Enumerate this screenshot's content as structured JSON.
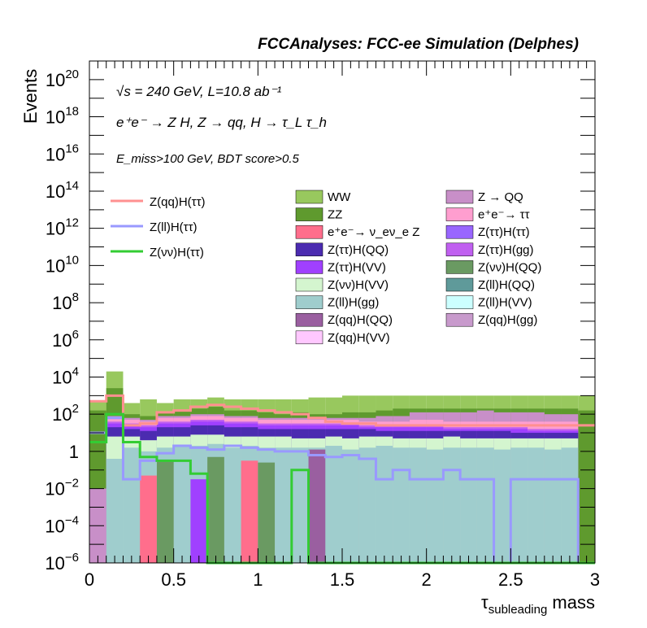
{
  "chart_data": {
    "type": "area",
    "title": "FCCAnalyses: FCC-ee Simulation (Delphes)",
    "ylabel": "Events",
    "xlabel_main": "τ",
    "xlabel_sub": "subleading",
    "xlabel_tail": " mass",
    "xlim": [
      0,
      3
    ],
    "ylim_log10": [
      -6,
      21
    ],
    "log_y": true,
    "x_ticks": [
      0,
      0.5,
      1,
      1.5,
      2,
      2.5,
      3
    ],
    "x_tick_labels": [
      "0",
      "0.5",
      "1",
      "1.5",
      "2",
      "2.5",
      "3"
    ],
    "y_ticks": [
      {
        "exp": -6,
        "base": "10",
        "sup": "−6"
      },
      {
        "exp": -4,
        "base": "10",
        "sup": "−4"
      },
      {
        "exp": -2,
        "base": "10",
        "sup": "−2"
      },
      {
        "exp": 0,
        "base": "1",
        "sup": ""
      },
      {
        "exp": 2,
        "base": "10",
        "sup": "2"
      },
      {
        "exp": 4,
        "base": "10",
        "sup": "4"
      },
      {
        "exp": 6,
        "base": "10",
        "sup": "6"
      },
      {
        "exp": 8,
        "base": "10",
        "sup": "8"
      },
      {
        "exp": 10,
        "base": "10",
        "sup": "10"
      },
      {
        "exp": 12,
        "base": "10",
        "sup": "12"
      },
      {
        "exp": 14,
        "base": "10",
        "sup": "14"
      },
      {
        "exp": 16,
        "base": "10",
        "sup": "16"
      },
      {
        "exp": 18,
        "base": "10",
        "sup": "18"
      },
      {
        "exp": 20,
        "base": "10",
        "sup": "20"
      }
    ],
    "bin_width": 0.1,
    "annotations": {
      "line1": "√s = 240 GeV, L=10.8 ab⁻¹",
      "line2": "e⁺e⁻ → Z H, Z → qq, H → τ_L τ_h",
      "line3": "E_miss>100 GeV, BDT score>0.5"
    },
    "stack_log10_layers": [
      {
        "name": "Z(ll)H(gg)",
        "color": "#9fcdcd",
        "tops": [
          -6,
          -0.4,
          0.2,
          0.0,
          0.2,
          0.3,
          0.3,
          0.4,
          0.2,
          0.3,
          0.2,
          0.2,
          0.2,
          0.2,
          0.3,
          0.1,
          0.2,
          0.3,
          0.2,
          0.2,
          0.1,
          0.2,
          0.2,
          0.2,
          0.1,
          0.2,
          0.2,
          0.1,
          0.2,
          -6
        ]
      },
      {
        "name": "Z(νν)H(VV)",
        "color": "#d4f5cf",
        "tops": [
          -6,
          0.8,
          0.8,
          0.6,
          0.8,
          0.8,
          0.9,
          0.9,
          0.8,
          0.8,
          0.8,
          0.8,
          0.7,
          0.7,
          0.8,
          0.7,
          0.8,
          0.8,
          0.7,
          0.7,
          0.7,
          0.8,
          0.7,
          0.7,
          0.7,
          0.7,
          0.7,
          0.7,
          0.7,
          -6
        ]
      },
      {
        "name": "Z(ττ)H(QQ)",
        "color": "#4b2bb0",
        "tops": [
          -6,
          1.3,
          1.2,
          1.1,
          1.3,
          1.3,
          1.4,
          1.4,
          1.3,
          1.3,
          1.2,
          1.2,
          1.2,
          1.2,
          1.2,
          1.2,
          1.2,
          1.1,
          1.1,
          1.1,
          1.1,
          1.1,
          1.1,
          1.1,
          1.1,
          1.0,
          1.0,
          1.0,
          1.0,
          -6
        ]
      },
      {
        "name": "Z(ττ)H(VV)",
        "color": "#a040ff",
        "tops": [
          -6,
          1.5,
          1.4,
          1.3,
          1.5,
          1.5,
          1.6,
          1.6,
          1.5,
          1.5,
          1.4,
          1.4,
          1.4,
          1.4,
          1.4,
          1.4,
          1.3,
          1.3,
          1.3,
          1.3,
          1.3,
          1.2,
          1.2,
          1.2,
          1.2,
          1.2,
          1.1,
          1.1,
          1.1,
          -6
        ]
      },
      {
        "name": "Z(ττ)H(gg)",
        "color": "#c060f0",
        "tops": [
          -6,
          1.6,
          1.5,
          1.4,
          1.6,
          1.6,
          1.7,
          1.7,
          1.6,
          1.6,
          1.5,
          1.5,
          1.5,
          1.5,
          1.5,
          1.5,
          1.4,
          1.4,
          1.4,
          1.4,
          1.4,
          1.3,
          1.3,
          1.3,
          1.3,
          1.3,
          1.2,
          1.2,
          1.2,
          -6
        ]
      },
      {
        "name": "e⁺e⁻→ ττ",
        "color": "#ff9ecf",
        "tops": [
          -6,
          1.8,
          1.7,
          1.6,
          1.8,
          1.8,
          1.9,
          1.9,
          1.8,
          1.8,
          1.7,
          1.7,
          1.7,
          1.7,
          1.7,
          1.7,
          1.6,
          1.6,
          1.6,
          1.7,
          1.7,
          1.6,
          1.6,
          1.6,
          1.6,
          1.6,
          1.6,
          1.6,
          1.6,
          -6
        ]
      },
      {
        "name": "Z → QQ",
        "color": "#c88fc8",
        "tops": [
          -6,
          1.9,
          1.8,
          1.7,
          1.9,
          1.9,
          2.0,
          2.0,
          1.9,
          1.9,
          1.8,
          1.8,
          1.8,
          1.8,
          1.8,
          1.8,
          1.8,
          1.9,
          1.9,
          2.1,
          2.1,
          2.1,
          2.1,
          2.2,
          2.1,
          2.1,
          2.1,
          2.0,
          2.0,
          -6
        ]
      },
      {
        "name": "ZZ",
        "color": "#5f9a2e",
        "tops": [
          2.2,
          3.4,
          2.0,
          1.9,
          2.1,
          2.2,
          2.3,
          2.4,
          2.2,
          2.2,
          2.1,
          2.0,
          2.1,
          2.0,
          2.0,
          2.1,
          2.1,
          2.2,
          2.3,
          2.3,
          2.3,
          2.3,
          2.3,
          2.3,
          2.3,
          2.3,
          2.3,
          2.3,
          2.3,
          2.2
        ]
      },
      {
        "name": "WW",
        "color": "#98c85e",
        "tops": [
          2.7,
          4.3,
          2.6,
          2.8,
          2.6,
          2.8,
          2.8,
          2.9,
          2.8,
          2.8,
          2.8,
          2.8,
          2.8,
          2.9,
          2.9,
          3.0,
          3.0,
          3.0,
          3.0,
          3.0,
          3.0,
          3.0,
          3.0,
          3.0,
          3.0,
          3.0,
          3.0,
          3.0,
          3.0,
          3.0
        ]
      }
    ],
    "isolated_bars": [
      {
        "name": "Z → QQ",
        "color": "#c88fc8",
        "x0": 0.0,
        "x1": 0.1,
        "top": -2
      },
      {
        "name": "e⁺e⁻ → ν_eν_e Z",
        "color": "#ff6e8c",
        "x0": 0.3,
        "x1": 0.4,
        "top": -1.3
      },
      {
        "name": "e⁺e⁻ → ν_eν_e Z",
        "color": "#ff6e8c",
        "x0": 0.9,
        "x1": 1.0,
        "top": -0.5
      },
      {
        "name": "Z(ττ)H(VV)",
        "color": "#a040ff",
        "x0": 0.6,
        "x1": 0.7,
        "top": -1.5
      },
      {
        "name": "Z(νν)H(QQ)",
        "color": "#6a9a62",
        "x0": 1.0,
        "x1": 1.1,
        "top": -0.6
      },
      {
        "name": "Z(νν)H(QQ)",
        "color": "#6a9a62",
        "x0": 0.4,
        "x1": 0.5,
        "top": -0.5
      },
      {
        "name": "Z(νν)H(QQ)",
        "color": "#6a9a62",
        "x0": 0.7,
        "x1": 0.8,
        "top": -0.3
      },
      {
        "name": "Z(qq)H(QQ)",
        "color": "#9a5fa0",
        "x0": 1.3,
        "x1": 1.4,
        "top": 0.1
      }
    ],
    "lines": [
      {
        "name": "Z(qq)H(ττ)",
        "color": "#ff9090",
        "log10_values": [
          2.7,
          3.0,
          1.4,
          1.5,
          2.1,
          2.2,
          2.4,
          2.5,
          2.4,
          2.3,
          2.2,
          2.1,
          2.0,
          1.8,
          1.6,
          1.5,
          1.5,
          1.4,
          1.4,
          1.4,
          1.4,
          1.4,
          1.4,
          1.4,
          1.4,
          1.4,
          1.4,
          1.4,
          1.4,
          1.4
        ]
      },
      {
        "name": "Z(ll)H(ττ)",
        "color": "#9999ff",
        "log10_values": [
          1.0,
          1.8,
          -1.5,
          -0.5,
          -0.1,
          0.3,
          0.2,
          0.1,
          0.3,
          0.2,
          0.1,
          0.0,
          0.0,
          -0.2,
          -0.3,
          -0.2,
          -0.4,
          -1.5,
          -1.0,
          -1.5,
          -1.5,
          -1.0,
          -1.5,
          -1.5,
          -6,
          -1.5,
          -1.5,
          -1.5,
          -1.5,
          -6
        ]
      },
      {
        "name": "Z(νν)H(ττ)",
        "color": "#33cc33",
        "log10_values": [
          0.5,
          2.0,
          0.5,
          -0.3,
          -0.5,
          -0.5,
          -1.2,
          -6,
          -6,
          -6,
          -6,
          -6,
          -1.0,
          -6,
          -6,
          -6,
          -6,
          -6,
          -6,
          -6,
          -6,
          -6,
          -6,
          -6,
          -6,
          -6,
          -6,
          -6,
          -6,
          -6
        ]
      }
    ],
    "legend_lines": [
      "Z(qq)H(ττ)",
      "Z(ll)H(ττ)",
      "Z(νν)H(ττ)"
    ],
    "legend_col1": [
      {
        "label": "WW",
        "color": "#98c85e"
      },
      {
        "label": "ZZ",
        "color": "#5f9a2e"
      },
      {
        "label": "e⁺e⁻→ ν_eν_e Z",
        "color": "#ff6e8c"
      },
      {
        "label": "Z(ττ)H(QQ)",
        "color": "#4b2bb0"
      },
      {
        "label": "Z(ττ)H(VV)",
        "color": "#a040ff"
      },
      {
        "label": "Z(νν)H(VV)",
        "color": "#d4f5cf"
      },
      {
        "label": "Z(ll)H(gg)",
        "color": "#9fcdcd"
      },
      {
        "label": "Z(qq)H(QQ)",
        "color": "#9a5fa0"
      },
      {
        "label": "Z(qq)H(VV)",
        "color": "#ffc8ff"
      }
    ],
    "legend_col2": [
      {
        "label": "Z → QQ",
        "color": "#c88fc8"
      },
      {
        "label": "e⁺e⁻→ ττ",
        "color": "#ff9ecf"
      },
      {
        "label": "Z(ττ)H(ττ)",
        "color": "#9966ff"
      },
      {
        "label": "Z(ττ)H(gg)",
        "color": "#c060f0"
      },
      {
        "label": "Z(νν)H(QQ)",
        "color": "#6a9a62"
      },
      {
        "label": "Z(ll)H(QQ)",
        "color": "#5f9a9a"
      },
      {
        "label": "Z(ll)H(VV)",
        "color": "#ccffff"
      },
      {
        "label": "Z(qq)H(gg)",
        "color": "#c89acc"
      }
    ]
  }
}
